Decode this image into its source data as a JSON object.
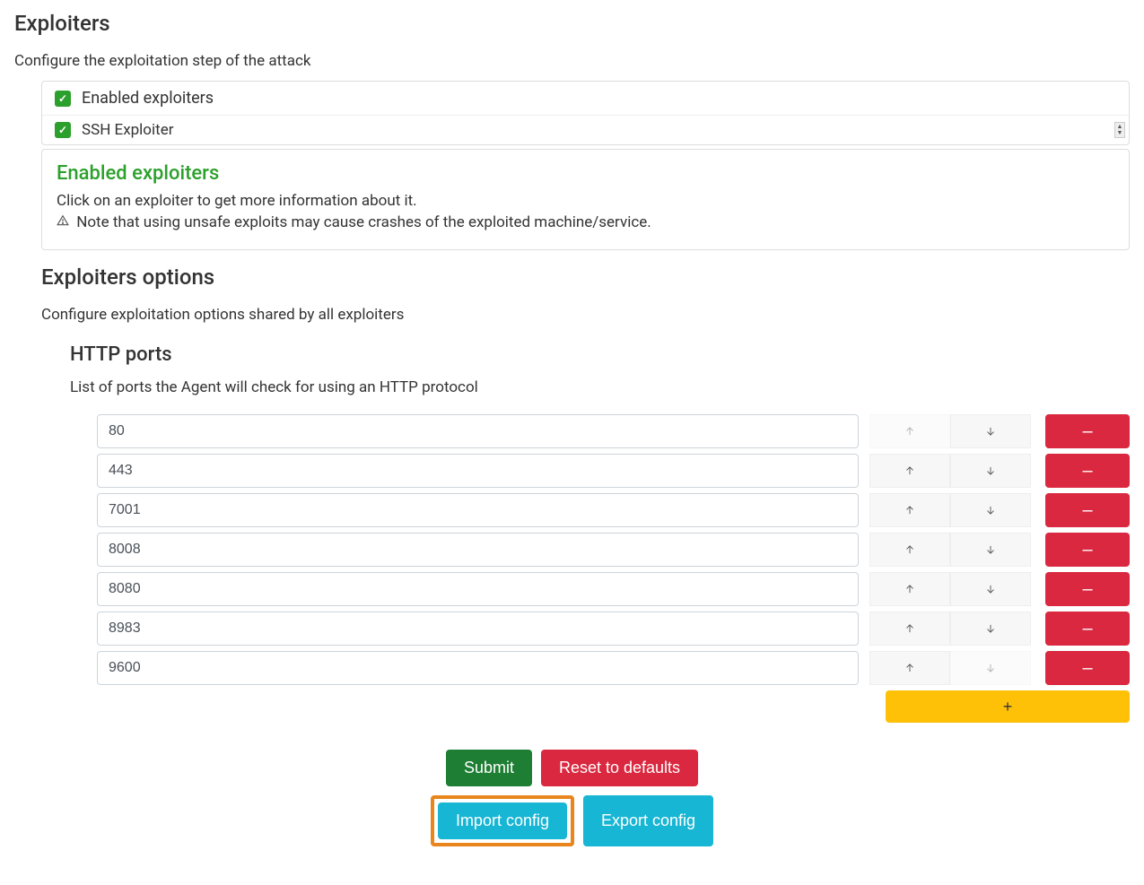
{
  "exploiters": {
    "title": "Exploiters",
    "description": "Configure the exploitation step of the attack",
    "header_label": "Enabled exploiters",
    "items": [
      {
        "label": "SSH Exploiter",
        "checked": true
      }
    ],
    "info": {
      "title": "Enabled exploiters",
      "line1": "Click on an exploiter to get more information about it.",
      "warning": "Note that using unsafe exploits may cause crashes of the exploited machine/service."
    }
  },
  "options": {
    "title": "Exploiters options",
    "description": "Configure exploitation options shared by all exploiters",
    "http": {
      "title": "HTTP ports",
      "description": "List of ports the Agent will check for using an HTTP protocol",
      "ports": [
        "80",
        "443",
        "7001",
        "8008",
        "8080",
        "8983",
        "9600"
      ]
    }
  },
  "buttons": {
    "submit": "Submit",
    "reset": "Reset to defaults",
    "import": "Import config",
    "export": "Export config",
    "add": "+",
    "remove": "–"
  },
  "colors": {
    "green_check": "#2ca02c",
    "danger": "#d9283f",
    "warning": "#ffc107",
    "info": "#17b6d4",
    "success": "#1e7e34",
    "highlight": "#e8851c"
  }
}
